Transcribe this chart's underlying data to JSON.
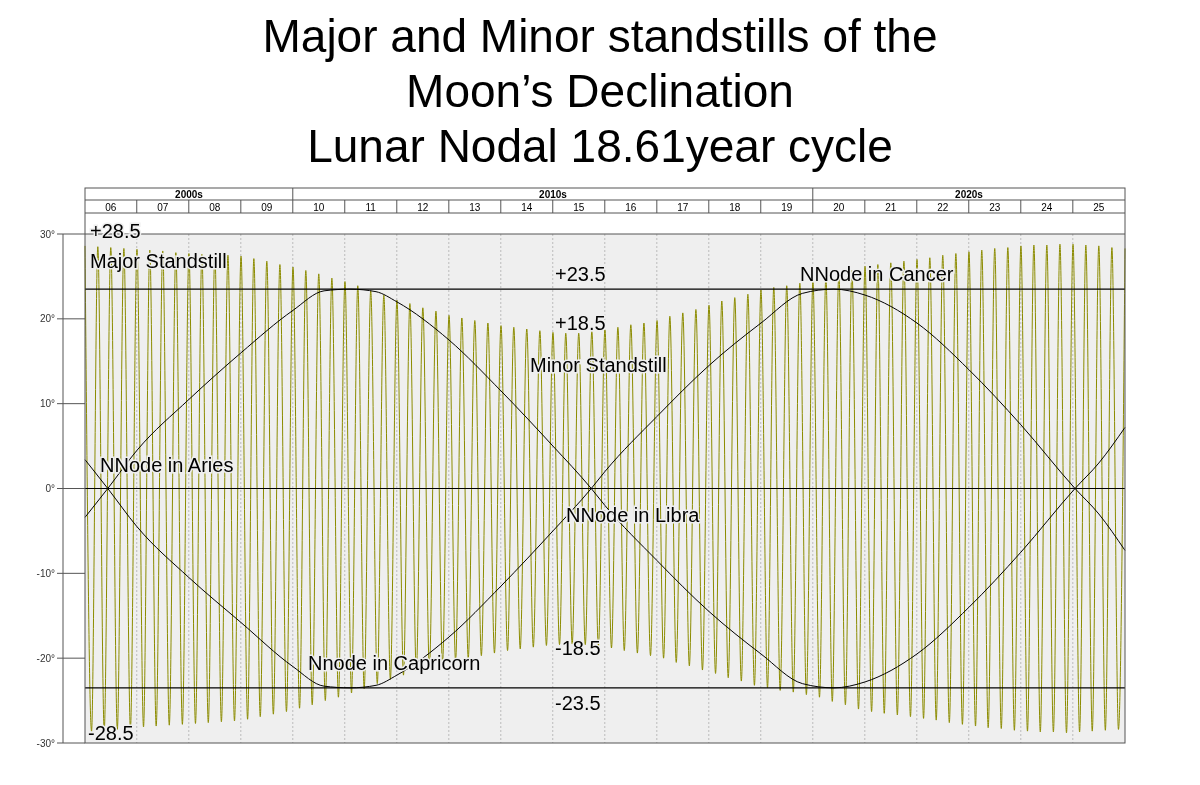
{
  "chart_data": {
    "type": "line",
    "title": "Major and Minor standstills of the Moon’s Declination",
    "subtitle": "Lunar Nodal 18.61year cycle",
    "xlim": [
      "2006-01-01",
      "2026-01-01"
    ],
    "ylim": [
      -30,
      30
    ],
    "xticks": [
      {
        "value": "2006-07",
        "label": "06"
      },
      {
        "value": "2007-07",
        "label": "07"
      },
      {
        "value": "2008-07",
        "label": "08"
      },
      {
        "value": "2009-07",
        "label": "09"
      },
      {
        "value": "2010-07",
        "label": "10"
      },
      {
        "value": "2011-07",
        "label": "11"
      },
      {
        "value": "2012-07",
        "label": "12"
      },
      {
        "value": "2013-07",
        "label": "13"
      },
      {
        "value": "2014-07",
        "label": "14"
      },
      {
        "value": "2015-07",
        "label": "15"
      },
      {
        "value": "2016-07",
        "label": "16"
      },
      {
        "value": "2017-07",
        "label": "17"
      },
      {
        "value": "2018-07",
        "label": "18"
      },
      {
        "value": "2019-07",
        "label": "19"
      },
      {
        "value": "2020-07",
        "label": "20"
      },
      {
        "value": "2021-07",
        "label": "21"
      },
      {
        "value": "2022-07",
        "label": "22"
      },
      {
        "value": "2023-07",
        "label": "23"
      },
      {
        "value": "2024-07",
        "label": "24"
      },
      {
        "value": "2025-07",
        "label": "25"
      }
    ],
    "yticks": [
      {
        "value": 30,
        "label": "30°"
      },
      {
        "value": 20,
        "label": "20°"
      },
      {
        "value": 10,
        "label": "10°"
      },
      {
        "value": 0,
        "label": "0°"
      },
      {
        "value": -10,
        "label": "-10°"
      },
      {
        "value": -20,
        "label": "-20°"
      },
      {
        "value": -30,
        "label": "-30°"
      }
    ],
    "grid": "x",
    "marker": "none",
    "line_style": "solid",
    "ref_lines": [
      {
        "axis": "y",
        "value": 23.5,
        "label": "+23.5",
        "color": "#000000"
      },
      {
        "axis": "y",
        "value": 0,
        "color": "#000000"
      },
      {
        "axis": "y",
        "value": -23.5,
        "label": "-23.5",
        "color": "#000000"
      }
    ],
    "annotations": [
      "+28.5",
      "Major Standstill",
      "+18.5",
      "Minor Standstill",
      "NNode in Cancer",
      "NNode in Aries",
      "NNode in Libra",
      "Nnode in Capricorn",
      "-18.5",
      "-28.5",
      "2000s",
      "2010s",
      "2020s"
    ],
    "series": [
      {
        "color": "#8c8c00",
        "x": [
          "2006-01-01",
          "2006-02-16",
          "2006-04-01",
          "2006-05-16",
          "2006-07-01",
          "2006-08-16",
          "2006-10-01",
          "2006-11-16",
          "2007-01-01",
          "2007-02-16",
          "2007-04-01",
          "2007-05-16",
          "2007-07-01",
          "2007-08-16",
          "2007-10-01",
          "2007-11-16",
          "2008-01-01",
          "2008-02-16",
          "2008-04-01",
          "2008-05-16",
          "2008-07-01",
          "2008-08-16",
          "2008-10-01",
          "2008-11-16",
          "2009-01-01",
          "2009-02-16",
          "2009-04-01",
          "2009-05-16",
          "2009-07-01",
          "2009-08-16",
          "2009-10-01",
          "2009-11-16",
          "2010-01-01",
          "2010-02-16",
          "2010-04-01",
          "2010-05-16",
          "2010-07-01",
          "2010-08-16",
          "2010-10-01",
          "2010-11-16",
          "2011-01-01",
          "2011-02-16",
          "2011-04-01",
          "2011-05-16",
          "2011-07-01",
          "2011-08-16",
          "2011-10-01",
          "2011-11-16",
          "2012-01-01",
          "2012-02-16",
          "2012-04-01",
          "2012-05-16",
          "2012-07-01",
          "2012-08-16",
          "2012-10-01",
          "2012-11-16",
          "2013-01-01",
          "2013-02-16",
          "2013-04-01",
          "2013-05-16",
          "2013-07-01",
          "2013-08-16",
          "2013-10-01",
          "2013-11-16",
          "2014-01-01",
          "2014-02-16",
          "2014-04-01",
          "2014-05-16",
          "2014-07-01",
          "2014-08-16",
          "2014-10-01",
          "2014-11-16",
          "2015-01-01",
          "2015-02-16",
          "2015-04-01",
          "2015-05-16",
          "2015-07-01",
          "2015-08-16",
          "2015-10-01",
          "2015-11-16",
          "2016-01-01",
          "2016-02-16",
          "2016-04-01",
          "2016-05-16",
          "2016-07-01",
          "2016-08-16",
          "2016-10-01",
          "2016-11-16",
          "2017-01-01",
          "2017-02-16",
          "2017-04-01",
          "2017-05-16",
          "2017-07-01",
          "2017-08-16",
          "2017-10-01",
          "2017-11-16",
          "2018-01-01",
          "2018-02-16",
          "2018-04-01",
          "2018-05-16",
          "2018-07-01",
          "2018-08-16",
          "2018-10-01",
          "2018-11-16",
          "2019-01-01",
          "2019-02-16",
          "2019-04-01",
          "2019-05-16",
          "2019-07-01",
          "2019-08-16",
          "2019-10-01",
          "2019-11-16",
          "2020-01-01",
          "2020-02-16",
          "2020-04-01",
          "2020-05-16",
          "2020-07-01",
          "2020-08-16",
          "2020-10-01",
          "2020-11-16",
          "2021-01-01",
          "2021-02-16",
          "2021-04-01",
          "2021-05-16",
          "2021-07-01",
          "2021-08-16",
          "2021-10-01",
          "2021-11-16",
          "2022-01-01",
          "2022-02-16",
          "2022-04-01",
          "2022-05-16",
          "2022-07-01",
          "2022-08-16",
          "2022-10-01",
          "2022-11-16",
          "2023-01-01",
          "2023-02-16",
          "2023-04-01",
          "2023-05-16",
          "2023-07-01",
          "2023-08-16",
          "2023-10-01",
          "2023-11-16",
          "2024-01-01",
          "2024-02-16",
          "2024-04-01",
          "2024-05-16",
          "2024-07-01",
          "2024-08-16",
          "2024-10-01",
          "2024-11-16",
          "2025-01-01",
          "2025-02-16",
          "2025-04-01",
          "2025-05-16",
          "2025-07-01",
          "2025-08-16",
          "2025-10-01",
          "2025-11-16",
          "2026-01-01"
        ],
        "values": [
          28.6,
          -28.6,
          28.5,
          -28.5,
          28.4,
          -28.4,
          28.3,
          -28.3,
          28.2,
          -28.1,
          28.1,
          -28.0,
          28.0,
          -27.9,
          27.8,
          -27.8,
          27.7,
          -27.7,
          27.6,
          -27.6,
          27.6,
          -27.5,
          27.5,
          -27.4,
          27.4,
          -27.2,
          27.1,
          -26.9,
          26.8,
          -26.6,
          26.4,
          -26.3,
          26.1,
          -25.9,
          25.7,
          -25.5,
          25.3,
          -25.0,
          24.8,
          -24.6,
          24.4,
          -24.1,
          23.9,
          -23.6,
          23.3,
          -23.0,
          22.8,
          -22.5,
          22.2,
          -22.0,
          21.8,
          -21.5,
          21.3,
          -21.1,
          20.9,
          -20.6,
          20.4,
          -20.3,
          20.1,
          -20.0,
          19.8,
          -19.7,
          19.5,
          -19.4,
          19.2,
          -19.1,
          19.0,
          -18.9,
          18.8,
          -18.7,
          18.6,
          -18.5,
          18.4,
          -18.4,
          18.3,
          -18.3,
          18.3,
          -18.4,
          18.5,
          -18.6,
          18.7,
          -18.8,
          19.0,
          -19.1,
          19.3,
          -19.4,
          19.5,
          -19.7,
          19.8,
          -20.0,
          20.3,
          -20.5,
          20.7,
          -20.9,
          21.1,
          -21.4,
          21.6,
          -21.8,
          22.1,
          -22.3,
          22.5,
          -22.7,
          22.9,
          -23.2,
          23.4,
          -23.5,
          23.7,
          -23.8,
          23.9,
          -24.0,
          24.2,
          -24.3,
          24.4,
          -24.6,
          24.9,
          -25.1,
          25.3,
          -25.5,
          25.7,
          -26.0,
          26.2,
          -26.3,
          26.4,
          -26.5,
          26.6,
          -26.7,
          26.8,
          -26.9,
          27.0,
          -27.1,
          27.2,
          -27.3,
          27.5,
          -27.6,
          27.7,
          -27.8,
          27.9,
          -28.0,
          28.1,
          -28.2,
          28.3,
          -28.3,
          28.4,
          -28.5,
          28.6,
          -28.6,
          28.7,
          -28.7,
          28.7,
          -28.7,
          28.8,
          -28.8,
          28.8,
          -28.7,
          28.7,
          -28.6,
          28.6,
          -28.5,
          28.4,
          -28.4,
          28.3
        ]
      },
      {
        "color": "#000000",
        "x": [
          "2006-01-01",
          "2006-06-10",
          "2007-01-01",
          "2008-01-01",
          "2009-01-01",
          "2010-01-01",
          "2010-08-07",
          "2011-02-06",
          "2011-08-07",
          "2012-01-01",
          "2013-01-01",
          "2014-01-01",
          "2015-01-01",
          "2015-09-27",
          "2016-01-01",
          "2017-01-01",
          "2018-01-01",
          "2019-01-01",
          "2019-10-19",
          "2020-05-27",
          "2021-01-01",
          "2022-01-01",
          "2023-01-01",
          "2024-01-01",
          "2025-01-15",
          "2025-07-01",
          "2026-01-01"
        ],
        "values": [
          3.4,
          0,
          -4.5,
          -10.5,
          -15.8,
          -21,
          -23.3,
          -23.5,
          -23.2,
          -22,
          -17.5,
          -11.5,
          -5,
          0,
          2,
          8.5,
          14.5,
          19.5,
          23,
          23.5,
          22.8,
          19.5,
          14,
          7.5,
          0,
          -3,
          -7.3
        ]
      },
      {
        "color": "#000000",
        "x": [
          "2006-01-01",
          "2006-06-10",
          "2007-01-01",
          "2008-01-01",
          "2009-01-01",
          "2010-01-01",
          "2010-08-07",
          "2011-02-06",
          "2011-08-07",
          "2012-01-01",
          "2013-01-01",
          "2014-01-01",
          "2015-01-01",
          "2015-09-27",
          "2016-01-01",
          "2017-01-01",
          "2018-01-01",
          "2019-01-01",
          "2019-10-19",
          "2020-05-27",
          "2021-01-01",
          "2022-01-01",
          "2023-01-01",
          "2024-01-01",
          "2025-01-15",
          "2025-07-01",
          "2026-01-01"
        ],
        "values": [
          -3.4,
          0,
          4.5,
          10.5,
          16,
          21,
          23.3,
          23.5,
          23.2,
          22,
          17.5,
          11.5,
          5,
          0,
          -2,
          -8.5,
          -14.5,
          -19.5,
          -23,
          -23.5,
          -22.8,
          -19.5,
          -14,
          -7.5,
          0,
          3,
          7.2
        ]
      }
    ]
  }
}
